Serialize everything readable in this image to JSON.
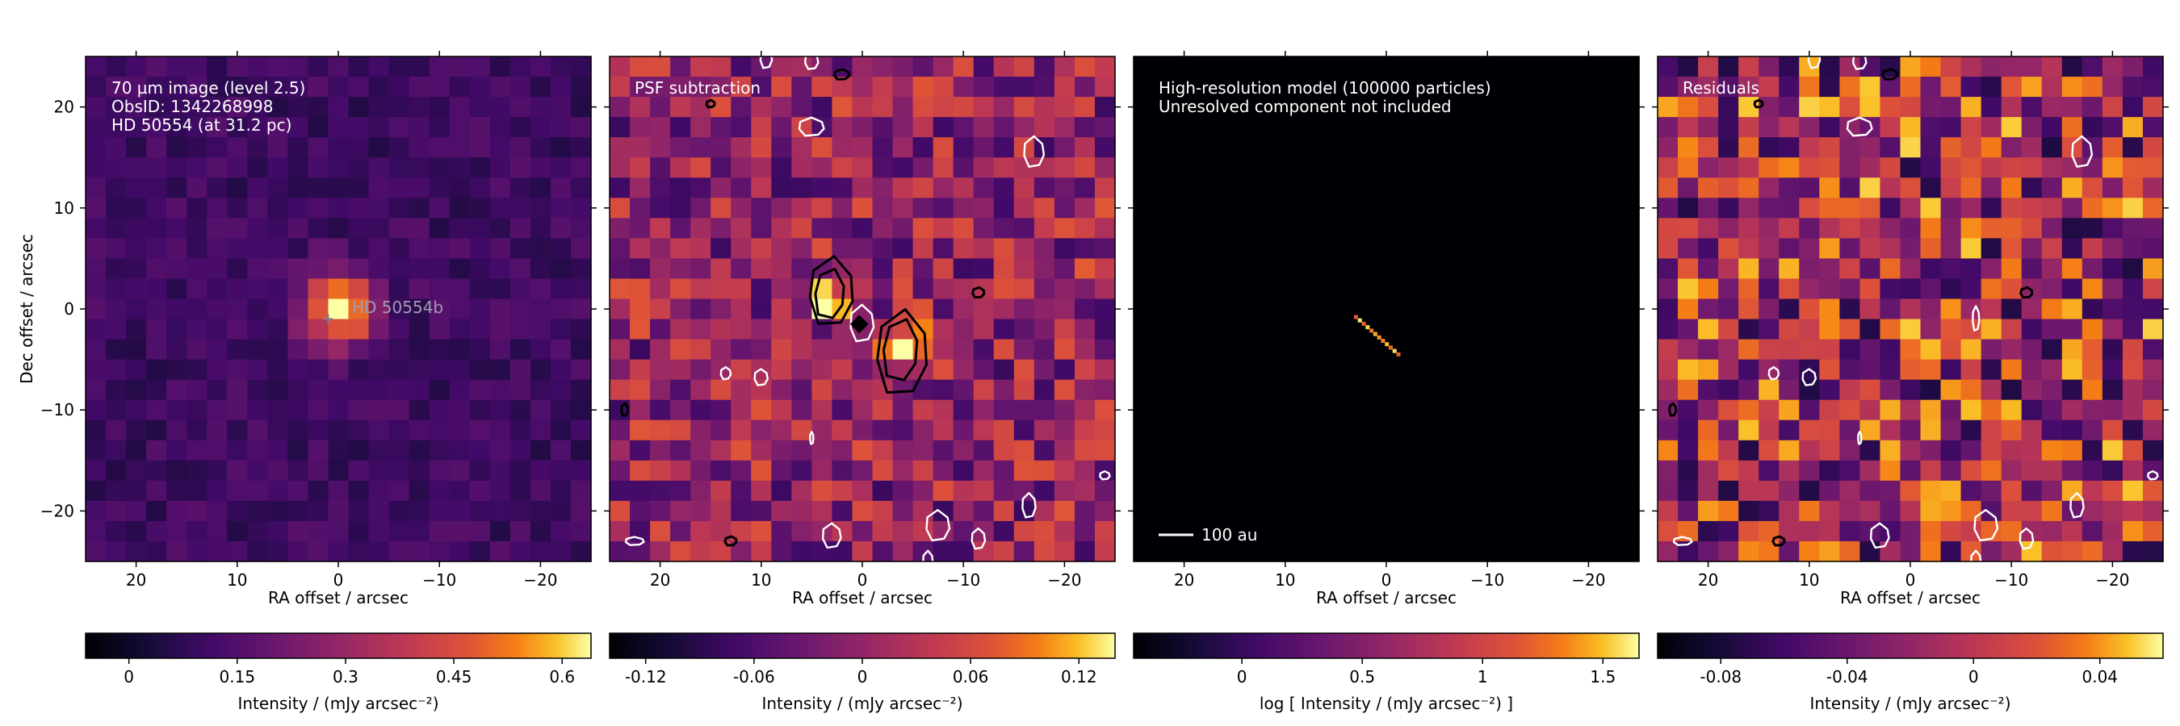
{
  "chart_data": [
    {
      "type": "heatmap",
      "panel_id": "observation",
      "annotations": [
        "70 µm image (level 2.5)",
        "ObsID: 1342268998",
        "HD 50554 (at 31.2 pc)"
      ],
      "marker_label": "HD 50554b",
      "marker_position": [
        1,
        -1
      ],
      "xlabel": "RA offset / arcsec",
      "ylabel": "Dec offset / arcsec",
      "xlim": [
        25,
        -25
      ],
      "ylim": [
        -25,
        25
      ],
      "xticks": [
        20,
        10,
        0,
        -10,
        -20
      ],
      "xtick_labels": [
        "20",
        "10",
        "0",
        "−10",
        "−20"
      ],
      "yticks": [
        20,
        10,
        0,
        -10,
        -20
      ],
      "ytick_labels": [
        "20",
        "10",
        "0",
        "−10",
        "−20"
      ],
      "colormap": "inferno",
      "colorbar_range": [
        -0.06,
        0.64
      ],
      "colorbar_ticks": [
        0,
        0.15,
        0.3,
        0.45,
        0.6
      ],
      "colorbar_tick_labels": [
        "0",
        "0.15",
        "0.3",
        "0.45",
        "0.6"
      ],
      "colorbar_label": "Intensity / (mJy arcsec⁻²)",
      "emission_peak": {
        "x": 0,
        "y": 0,
        "value": 0.62
      }
    },
    {
      "type": "heatmap",
      "panel_id": "psf-subtraction",
      "annotations": [
        "PSF subtraction"
      ],
      "xlabel": "RA offset / arcsec",
      "ylabel": "",
      "xlim": [
        25,
        -25
      ],
      "ylim": [
        -25,
        25
      ],
      "xticks": [
        20,
        10,
        0,
        -10,
        -20
      ],
      "xtick_labels": [
        "20",
        "10",
        "0",
        "−10",
        "−20"
      ],
      "colormap": "inferno",
      "colorbar_range": [
        -0.14,
        0.14
      ],
      "colorbar_ticks": [
        -0.12,
        -0.06,
        0,
        0.06,
        0.12
      ],
      "colorbar_tick_labels": [
        "-0.12",
        "-0.06",
        "0",
        "0.06",
        "0.12"
      ],
      "colorbar_label": "Intensity / (mJy arcsec⁻²)",
      "residual_peaks": [
        {
          "x": 3,
          "y": 1.5,
          "value": 0.13
        },
        {
          "x": -4,
          "y": -4,
          "value": 0.14
        }
      ]
    },
    {
      "type": "heatmap",
      "panel_id": "model",
      "annotations": [
        "High-resolution model (100000 particles)",
        "Unresolved component not included"
      ],
      "scale_bar_label": "100 au",
      "xlabel": "RA offset / arcsec",
      "ylabel": "",
      "xlim": [
        25,
        -25
      ],
      "ylim": [
        -25,
        25
      ],
      "xticks": [
        20,
        10,
        0,
        -10,
        -20
      ],
      "xtick_labels": [
        "20",
        "10",
        "0",
        "−10",
        "−20"
      ],
      "colormap": "inferno",
      "colorbar_range": [
        -0.45,
        1.65
      ],
      "colorbar_ticks": [
        0,
        0.5,
        1,
        1.5
      ],
      "colorbar_tick_labels": [
        "0",
        "0.5",
        "1",
        "1.5"
      ],
      "colorbar_label": "log [ Intensity / (mJy arcsec⁻²) ]",
      "disk_segment": {
        "from": [
          3,
          -0.8
        ],
        "to": [
          -1.2,
          -4.5
        ]
      }
    },
    {
      "type": "heatmap",
      "panel_id": "residuals",
      "annotations": [
        "Residuals"
      ],
      "xlabel": "RA offset / arcsec",
      "ylabel": "",
      "xlim": [
        25,
        -25
      ],
      "ylim": [
        -25,
        25
      ],
      "xticks": [
        20,
        10,
        0,
        -10,
        -20
      ],
      "xtick_labels": [
        "20",
        "10",
        "0",
        "−10",
        "−20"
      ],
      "colormap": "inferno",
      "colorbar_range": [
        -0.1,
        0.06
      ],
      "colorbar_ticks": [
        -0.08,
        -0.04,
        0,
        0.04
      ],
      "colorbar_tick_labels": [
        "-0.08",
        "-0.04",
        "0",
        "0.04"
      ],
      "colorbar_label": "Intensity / (mJy arcsec⁻²)"
    }
  ]
}
